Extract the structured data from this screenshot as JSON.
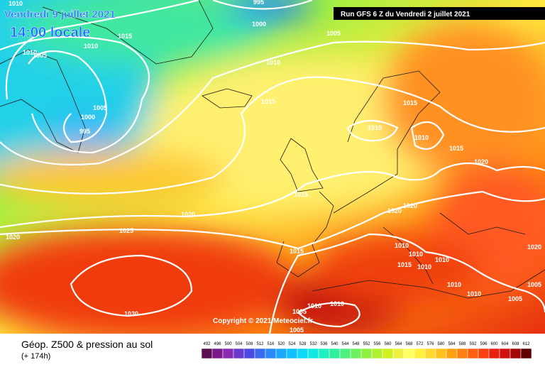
{
  "header": {
    "date": "Vendredi 9 juillet 2021",
    "time": "14:00 locale",
    "run": "Run GFS 6 Z du Vendredi 2 juillet 2021"
  },
  "copyright": "Copyright © 2021 Meteociel.fr",
  "footer": {
    "title": "Géop. Z500 & pression au sol",
    "lead": "(+ 174h)"
  },
  "isobar_labels": [
    995,
    1000,
    1005,
    1010,
    1015,
    1010,
    1010,
    1005,
    1010,
    1015,
    1005,
    1000,
    995,
    1015,
    1010,
    1010,
    1015,
    1020,
    1015,
    1020,
    1020,
    1020,
    1025,
    1020,
    1015,
    1010,
    1010,
    1015,
    1010,
    1010,
    1010,
    1010,
    1005,
    1005,
    1010,
    1010,
    1005,
    1030,
    1005,
    1020
  ],
  "scale": {
    "labels": [
      492,
      496,
      500,
      504,
      508,
      512,
      516,
      520,
      524,
      528,
      532,
      536,
      540,
      544,
      548,
      552,
      556,
      560,
      564,
      568,
      572,
      576,
      580,
      584,
      588,
      592,
      596,
      600,
      604,
      608,
      612
    ],
    "colors": [
      "#5a1050",
      "#7a1a8a",
      "#8a2ab0",
      "#6a3ad0",
      "#4a4ae0",
      "#3a6af0",
      "#2a8af8",
      "#1aa8ff",
      "#10c0ff",
      "#10d8f8",
      "#10e8e0",
      "#20f0c0",
      "#30f0a0",
      "#50f080",
      "#70f060",
      "#90f040",
      "#b0f030",
      "#d0f020",
      "#f0f040",
      "#ffff60",
      "#fff040",
      "#ffd830",
      "#ffc020",
      "#ffa010",
      "#ff8010",
      "#ff6010",
      "#f84010",
      "#e82010",
      "#d01010",
      "#a00808",
      "#600000"
    ]
  }
}
